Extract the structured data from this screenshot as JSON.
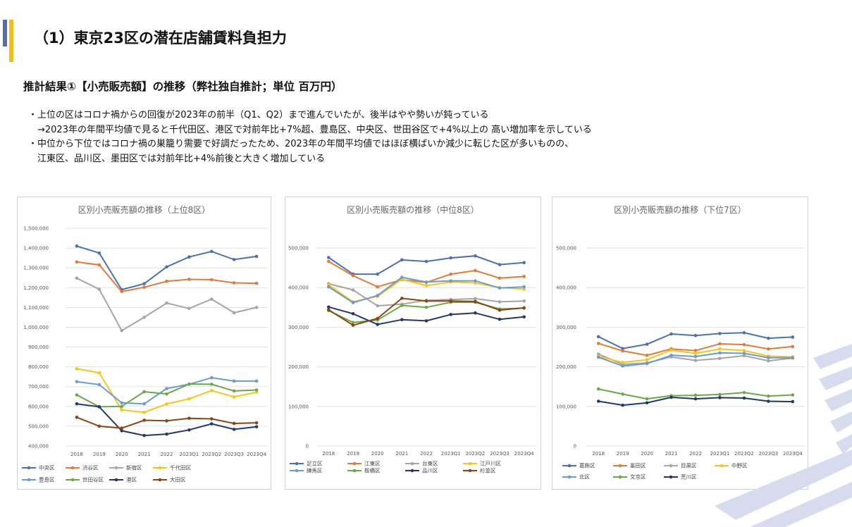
{
  "header": {
    "title": "（1）東京23区の潜在店舗賃料負担力",
    "subtitle": "推計結果①【小売販売額】の推移（弊社独自推計；単位 百万円）"
  },
  "bullets": [
    "・上位の区はコロナ禍からの回復が2023年の前半（Q1、Q2）まで進んでいたが、後半はやや勢いが鈍っている",
    "　→2023年の年間平均値で見ると千代田区、港区で対前年比+7%超、豊島区、中央区、世田谷区で+4%以上の 高い増加率を示している",
    "・中位から下位ではコロナ禍の巣籠り需要で好調だったため、2023年の年間平均値ではほぼ横ばいか減少に転じた区が多いものの、",
    "　江東区、品川区、墨田区では対前年比+4%前後と大きく増加している"
  ],
  "chart_data": [
    {
      "type": "line",
      "title": "区別小売販売額の推移（上位8区）",
      "categories": [
        "2018",
        "2019",
        "2020",
        "2021",
        "2022",
        "2023Q1",
        "2023Q2",
        "2023Q3",
        "2023Q4"
      ],
      "ylim": [
        400000,
        1500000
      ],
      "yticks": [
        400000,
        500000,
        600000,
        700000,
        800000,
        900000,
        1000000,
        1100000,
        1200000,
        1300000,
        1400000,
        1500000
      ],
      "ytick_labels": [
        "400,000",
        "500,000",
        "600,000",
        "700,000",
        "800,000",
        "900,000",
        "1,000,000",
        "1,100,000",
        "1,200,000",
        "1,300,000",
        "1,400,000",
        "1,500,000"
      ],
      "series": [
        {
          "name": "中央区",
          "color": "#4a72b0",
          "values": [
            1410000,
            1375000,
            1190000,
            1220000,
            1305000,
            1355000,
            1383000,
            1342000,
            1358000
          ]
        },
        {
          "name": "渋谷区",
          "color": "#e07b39",
          "values": [
            1330000,
            1315000,
            1180000,
            1202000,
            1232000,
            1242000,
            1240000,
            1224000,
            1222000
          ]
        },
        {
          "name": "新宿区",
          "color": "#a5a5a5",
          "values": [
            1248000,
            1192000,
            983000,
            1050000,
            1122000,
            1095000,
            1142000,
            1073000,
            1100000
          ]
        },
        {
          "name": "千代田区",
          "color": "#f5c518",
          "values": [
            790000,
            770000,
            582000,
            570000,
            612000,
            638000,
            680000,
            648000,
            672000
          ]
        },
        {
          "name": "豊島区",
          "color": "#6a9bd1",
          "values": [
            725000,
            710000,
            618000,
            613000,
            690000,
            712000,
            745000,
            728000,
            728000
          ]
        },
        {
          "name": "世田谷区",
          "color": "#6aaa46",
          "values": [
            658000,
            598000,
            600000,
            674000,
            663000,
            713000,
            712000,
            678000,
            683000
          ]
        },
        {
          "name": "港区",
          "color": "#22386e",
          "values": [
            613000,
            598000,
            477000,
            453000,
            460000,
            481000,
            512000,
            484000,
            497000
          ]
        },
        {
          "name": "大田区",
          "color": "#8b4513",
          "values": [
            545000,
            500000,
            490000,
            530000,
            527000,
            540000,
            537000,
            514000,
            517000
          ]
        }
      ]
    },
    {
      "type": "line",
      "title": "区別小売販売額の推移（中位8区）",
      "categories": [
        "2018",
        "2019",
        "2020",
        "2021",
        "2022",
        "2023Q1",
        "2023Q2",
        "2023Q3",
        "2023Q4"
      ],
      "ylim": [
        0,
        500000
      ],
      "yticks": [
        0,
        100000,
        200000,
        300000,
        400000,
        500000
      ],
      "ytick_labels": [
        "0",
        "100,000",
        "200,000",
        "300,000",
        "400,000",
        "500,000"
      ],
      "series": [
        {
          "name": "足立区",
          "color": "#4a72b0",
          "values": [
            476000,
            434000,
            434000,
            470000,
            466000,
            475000,
            480000,
            458000,
            463000
          ]
        },
        {
          "name": "江東区",
          "color": "#e07b39",
          "values": [
            466000,
            430000,
            402000,
            420000,
            413000,
            434000,
            443000,
            424000,
            428000
          ]
        },
        {
          "name": "台東区",
          "color": "#a5a5a5",
          "values": [
            410000,
            394000,
            354000,
            358000,
            368000,
            370000,
            372000,
            364000,
            366000
          ]
        },
        {
          "name": "江戸川区",
          "color": "#f5c518",
          "values": [
            407000,
            364000,
            378000,
            421000,
            405000,
            414000,
            412000,
            400000,
            396000
          ]
        },
        {
          "name": "練馬区",
          "color": "#6a9bd1",
          "values": [
            402000,
            362000,
            380000,
            426000,
            414000,
            417000,
            417000,
            399000,
            402000
          ]
        },
        {
          "name": "板橋区",
          "color": "#6aaa46",
          "values": [
            342000,
            312000,
            318000,
            355000,
            350000,
            363000,
            363000,
            346000,
            348000
          ]
        },
        {
          "name": "品川区",
          "color": "#22386e",
          "values": [
            351000,
            334000,
            307000,
            319000,
            316000,
            332000,
            336000,
            320000,
            326000
          ]
        },
        {
          "name": "杉並区",
          "color": "#8b4513",
          "values": [
            344000,
            305000,
            322000,
            373000,
            366000,
            366000,
            365000,
            343000,
            349000
          ]
        }
      ]
    },
    {
      "type": "line",
      "title": "区別小売販売額の推移（下位7区）",
      "categories": [
        "2018",
        "2019",
        "2020",
        "2021",
        "2022",
        "2023Q1",
        "2023Q2",
        "2023Q3",
        "2023Q4"
      ],
      "ylim": [
        0,
        500000
      ],
      "yticks": [
        0,
        100000,
        200000,
        300000,
        400000,
        500000
      ],
      "ytick_labels": [
        "0",
        "100,000",
        "200,000",
        "300,000",
        "400,000",
        "500,000"
      ],
      "series": [
        {
          "name": "葛飾区",
          "color": "#4a72b0",
          "values": [
            276000,
            246000,
            257000,
            283000,
            279000,
            284000,
            286000,
            272000,
            275000
          ]
        },
        {
          "name": "墨田区",
          "color": "#e07b39",
          "values": [
            259000,
            240000,
            229000,
            245000,
            241000,
            258000,
            256000,
            245000,
            251000
          ]
        },
        {
          "name": "目黒区",
          "color": "#a5a5a5",
          "values": [
            232000,
            206000,
            210000,
            225000,
            216000,
            221000,
            228000,
            215000,
            222000
          ]
        },
        {
          "name": "中野区",
          "color": "#f5c518",
          "values": [
            226000,
            211000,
            218000,
            242000,
            234000,
            245000,
            241000,
            227000,
            225000
          ]
        },
        {
          "name": "北区",
          "color": "#6a9bd1",
          "values": [
            224000,
            202000,
            208000,
            229000,
            226000,
            235000,
            234000,
            223000,
            223000
          ]
        },
        {
          "name": "文京区",
          "color": "#6aaa46",
          "values": [
            144000,
            131000,
            119000,
            127000,
            128000,
            130000,
            135000,
            126000,
            129000
          ]
        },
        {
          "name": "荒川区",
          "color": "#22386e",
          "values": [
            113000,
            103000,
            109000,
            123000,
            119000,
            122000,
            121000,
            113000,
            112000
          ]
        }
      ]
    }
  ]
}
